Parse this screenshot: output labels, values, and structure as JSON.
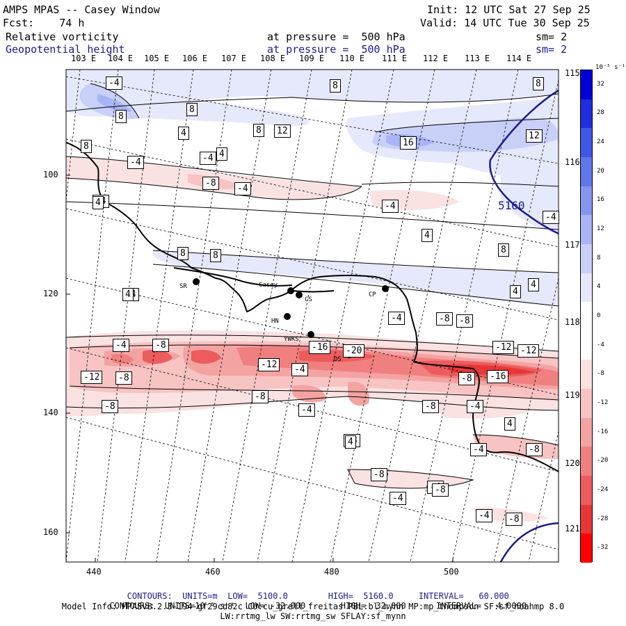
{
  "header": {
    "title": "AMPS MPAS -- Casey Window",
    "forecast": "Fcst:    74 h",
    "init": "Init: 12 UTC Sat 27 Sep 25",
    "valid": "Valid: 14 UTC Tue 30 Sep 25",
    "field1": {
      "name": "Relative vorticity",
      "level": "at pressure =  500 hPa",
      "smooth": "sm= 2"
    },
    "field2": {
      "name": "Geopotential height",
      "level": "at pressure =  500 hPa",
      "smooth": "sm= 2"
    }
  },
  "top_longitudes": [
    "103 E",
    "104 E",
    "105 E",
    "106 E",
    "107 E",
    "108 E",
    "109 E",
    "110 E",
    "111 E",
    "112 E",
    "113 E",
    "114 E"
  ],
  "right_latitudes": [
    "115 E",
    "116 E",
    "117 E",
    "118 E",
    "119 E",
    "120 E",
    "121 E"
  ],
  "x_ticks": [
    "440",
    "460",
    "480",
    "500"
  ],
  "y_ticks": [
    "100",
    "120",
    "140",
    "160"
  ],
  "colorbar": {
    "unit_label": "10⁻⁵ s⁻¹",
    "labels": [
      "32",
      "28",
      "24",
      "20",
      "16",
      "12",
      "8",
      "4",
      "0",
      "-4",
      "-8",
      "-12",
      "-16",
      "-20",
      "-24",
      "-28",
      "-32"
    ],
    "colors": [
      "#0000d8",
      "#1f2fe0",
      "#3f56e6",
      "#5f77ec",
      "#8496f0",
      "#a8b4f4",
      "#c9d0f8",
      "#e6e9fb",
      "#ffffff",
      "#ffffff",
      "#fbe2e2",
      "#f8c3c3",
      "#f4a3a3",
      "#f08080",
      "#ec5c5c",
      "#e83636",
      "#ff0000"
    ]
  },
  "stations": [
    {
      "label": "SR"
    },
    {
      "label": "Casey"
    },
    {
      "label": "CS"
    },
    {
      "label": "HN"
    },
    {
      "label": "CP"
    },
    {
      "label": "YWKS"
    },
    {
      "label": "DS"
    }
  ],
  "contour_labels": {
    "negative": [
      "-4",
      "-4",
      "-4",
      "-4",
      "-8",
      "-4",
      "-4",
      "-4",
      "-8",
      "-4",
      "-8",
      "-12",
      "-4",
      "-12",
      "-8",
      "-16",
      "-20",
      "-12",
      "-4",
      "-8",
      "-8",
      "-8",
      "-4",
      "-8",
      "-4",
      "-8",
      "-8",
      "-16",
      "-4",
      "-8",
      "-4",
      "-8",
      "-4",
      "-4",
      "-8",
      "-12",
      "-4",
      "-8"
    ],
    "positive": [
      "8",
      "8",
      "8",
      "8",
      "12",
      "16",
      "8",
      "4",
      "4",
      "4",
      "12",
      "8",
      "8",
      "4",
      "8",
      "4",
      "4",
      "4",
      "8",
      "4",
      "4"
    ],
    "height": "5160"
  },
  "footer": {
    "line1": {
      "prefix": "CONTOURS:",
      "units": "UNITS=m",
      "low": "LOW=  5100.0",
      "high": "HIGH=  5160.0",
      "interval": "INTERVAL=   60.000"
    },
    "line2": {
      "prefix": "CONTOURS:",
      "units": "UNITS=10⁻⁵ s⁻¹",
      "low": "LOW= -32.000",
      "high": "HIGH=  32.000",
      "interval": "INTERVAL=   4.0000"
    },
    "model_info": "Model Info: MPASv8.2.3-194-gf29cd82c CU:cu_grell_freitas PBL:bl_mynn MP:mp_thompson SF:sf_noahmp 8.0",
    "phys": "LW:rrtmg_lw SW:rrtmg_sw SFLAY:sf_mynn"
  }
}
